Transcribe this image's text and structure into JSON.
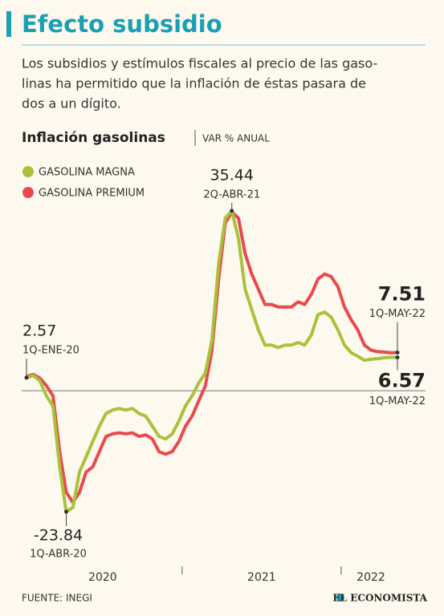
{
  "header": {
    "title": "Efecto subsidio",
    "subtitle": [
      "Los subsidios y estímulos fiscales al precio de las gaso-",
      "linas ha permitido que la inflación de éstas pasara de",
      "dos a un dígito."
    ]
  },
  "chart_data": {
    "type": "line",
    "title": "Inflación gasolinas",
    "unit": "VAR % ANUAL",
    "categories": [
      "1Q-ENE-20",
      null,
      null,
      null,
      null,
      null,
      "1Q-ABR-20",
      null,
      null,
      null,
      null,
      null,
      null,
      null,
      null,
      null,
      null,
      null,
      null,
      null,
      null,
      null,
      null,
      null,
      null,
      null,
      null,
      null,
      null,
      null,
      null,
      "2Q-ABR-21",
      null,
      null,
      null,
      null,
      null,
      null,
      null,
      null,
      null,
      null,
      null,
      null,
      null,
      null,
      null,
      null,
      null,
      null,
      null,
      null,
      null,
      null,
      null,
      null,
      "1Q-MAY-22"
    ],
    "year_groups": [
      {
        "label": "2020",
        "start": 0,
        "end": 23
      },
      {
        "label": "2021",
        "start": 24,
        "end": 47
      },
      {
        "label": "2022",
        "start": 48,
        "end": 56
      }
    ],
    "series": [
      {
        "name": "GASOLINA MAGNA",
        "color": "#a9c23a",
        "values": [
          2.57,
          3.0,
          2.0,
          -1,
          -3,
          -15,
          -23.84,
          -23,
          -16,
          -13,
          -10,
          -7,
          -4.5,
          -3.8,
          -3.5,
          -3.8,
          -3.5,
          -4.5,
          -5,
          -7,
          -9,
          -9.5,
          -8.5,
          -6,
          -3,
          -1,
          1.5,
          3.5,
          10,
          25,
          34,
          35.44,
          30,
          20,
          16,
          12,
          9,
          9,
          8.5,
          9,
          9,
          9.5,
          9,
          11,
          15,
          15.5,
          14.5,
          12,
          9,
          7.5,
          6.8,
          6,
          6.2,
          6.3,
          6.5,
          6.6,
          6.57
        ],
        "value_labels": [
          "2.57",
          null,
          null,
          null,
          null,
          null,
          "-23.84",
          null,
          null,
          null,
          null,
          null,
          null,
          null,
          null,
          null,
          null,
          null,
          null,
          null,
          null,
          null,
          null,
          null,
          null,
          null,
          null,
          null,
          null,
          null,
          null,
          "35.44",
          null,
          null,
          null,
          null,
          null,
          null,
          null,
          null,
          null,
          null,
          null,
          null,
          null,
          null,
          null,
          null,
          null,
          null,
          null,
          null,
          null,
          null,
          null,
          null,
          "6.57"
        ]
      },
      {
        "name": "GASOLINA PREMIUM",
        "color": "#e84a4f",
        "values": [
          2.8,
          3.2,
          2.5,
          1,
          -1,
          -12,
          -20,
          -22,
          -20,
          -16,
          -15,
          -12,
          -9,
          -8.5,
          -8.3,
          -8.5,
          -8.3,
          -9,
          -8.7,
          -9.5,
          -12,
          -12.5,
          -12,
          -10,
          -7,
          -5,
          -2,
          1,
          8,
          22,
          33,
          35.2,
          34,
          27,
          23,
          20,
          17,
          17,
          16.5,
          16.5,
          16.5,
          17.5,
          17,
          19,
          22,
          23,
          22.5,
          20.5,
          16.5,
          14,
          12,
          9,
          8,
          7.7,
          7.6,
          7.5,
          7.51
        ],
        "value_labels": [
          null,
          null,
          null,
          null,
          null,
          null,
          null,
          null,
          null,
          null,
          null,
          null,
          null,
          null,
          null,
          null,
          null,
          null,
          null,
          null,
          null,
          null,
          null,
          null,
          null,
          null,
          null,
          null,
          null,
          null,
          null,
          null,
          null,
          null,
          null,
          null,
          null,
          null,
          null,
          null,
          null,
          null,
          null,
          null,
          null,
          null,
          null,
          null,
          null,
          null,
          null,
          null,
          null,
          null,
          null,
          null,
          "7.51"
        ]
      }
    ],
    "ylim": [
      -30,
      40
    ]
  },
  "footer": {
    "source": "FUENTE: INEGI",
    "brand": "EL ECONOMISTA"
  }
}
